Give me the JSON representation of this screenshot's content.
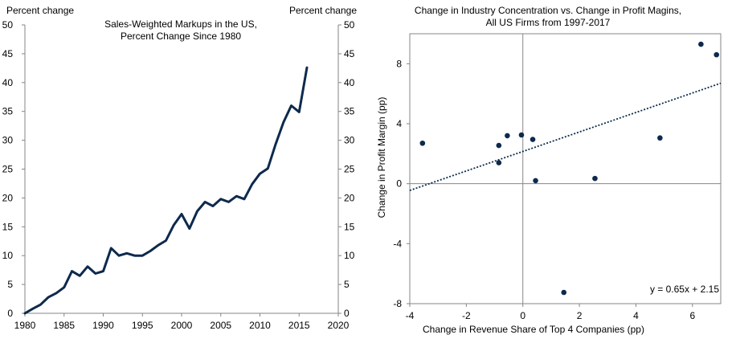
{
  "chart_data": [
    {
      "type": "line",
      "title_line1": "Sales-Weighted Markups in the US,",
      "title_line2": "Percent Change Since 1980",
      "ylabel_left": "Percent change",
      "ylabel_right": "Percent change",
      "xlim": [
        1980,
        2020
      ],
      "ylim": [
        0,
        50
      ],
      "xticks": [
        1980,
        1985,
        1990,
        1995,
        2000,
        2005,
        2010,
        2015,
        2020
      ],
      "yticks": [
        0,
        5,
        10,
        15,
        20,
        25,
        30,
        35,
        40,
        45,
        50
      ],
      "grid": false,
      "series": [
        {
          "name": "Sales-Weighted Markups",
          "color": "#0d2a4d",
          "x": [
            1980,
            1981,
            1982,
            1983,
            1984,
            1985,
            1986,
            1987,
            1988,
            1989,
            1990,
            1991,
            1992,
            1993,
            1994,
            1995,
            1996,
            1997,
            1998,
            1999,
            2000,
            2001,
            2002,
            2003,
            2004,
            2005,
            2006,
            2007,
            2008,
            2009,
            2010,
            2011,
            2012,
            2013,
            2014,
            2015,
            2016
          ],
          "values": [
            0,
            0.8,
            1.5,
            2.8,
            3.5,
            4.5,
            7.3,
            6.5,
            8.1,
            6.9,
            7.3,
            11.3,
            10.0,
            10.4,
            10.0,
            10.0,
            10.8,
            11.8,
            12.6,
            15.3,
            17.2,
            14.7,
            17.7,
            19.3,
            18.6,
            19.8,
            19.3,
            20.3,
            19.8,
            22.4,
            24.2,
            25.1,
            29.3,
            33.1,
            36.0,
            34.9,
            42.6
          ]
        }
      ]
    },
    {
      "type": "scatter",
      "title_line1": "Change in Industry Concentration vs. Change in Profit Magins,",
      "title_line2": "All US Firms from 1997-2017",
      "xlabel": "Change in Revenue  Share of Top 4 Companies  (pp)",
      "ylabel": "Change in Profit Margin  (pp)",
      "xlim": [
        -4,
        7
      ],
      "ylim": [
        -8,
        10
      ],
      "xticks": [
        -4,
        -2,
        0,
        2,
        4,
        6
      ],
      "yticks": [
        -8,
        -4,
        0,
        4,
        8
      ],
      "grid": false,
      "point_color": "#0d2a4d",
      "trendline": {
        "slope": 0.65,
        "intercept": 2.15,
        "label": "y = 0.65x + 2.15",
        "color": "#0d2a4d"
      },
      "points": [
        {
          "x": -3.55,
          "y": 2.7
        },
        {
          "x": -0.85,
          "y": 2.55
        },
        {
          "x": -0.85,
          "y": 1.4
        },
        {
          "x": -0.55,
          "y": 3.2
        },
        {
          "x": -0.05,
          "y": 3.25
        },
        {
          "x": 0.35,
          "y": 2.95
        },
        {
          "x": 0.45,
          "y": 0.2
        },
        {
          "x": 1.45,
          "y": -7.25
        },
        {
          "x": 2.55,
          "y": 0.35
        },
        {
          "x": 4.85,
          "y": 3.05
        },
        {
          "x": 6.3,
          "y": 9.3
        },
        {
          "x": 6.85,
          "y": 8.6
        }
      ]
    }
  ]
}
